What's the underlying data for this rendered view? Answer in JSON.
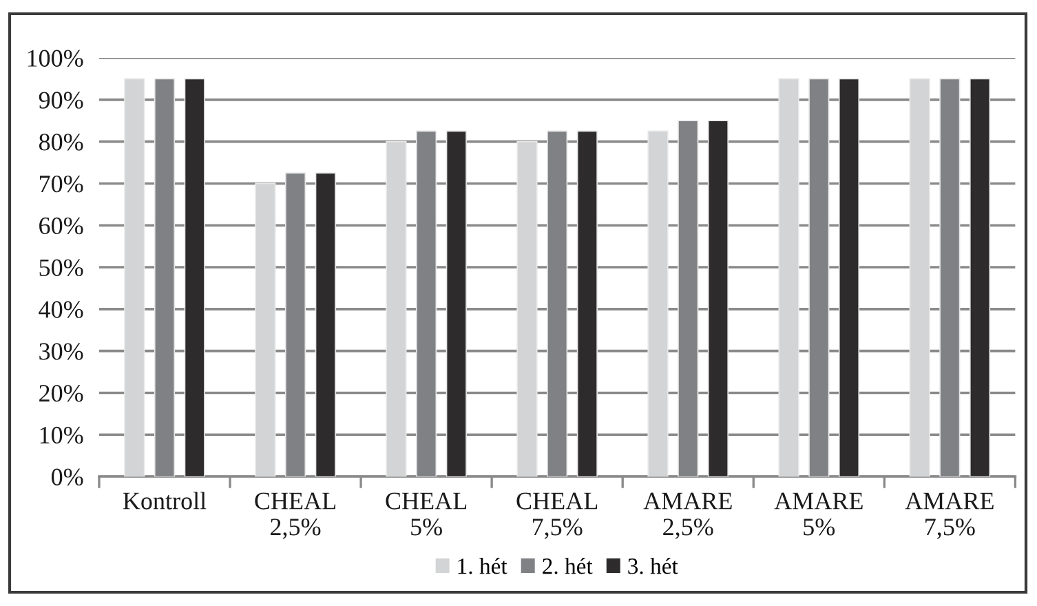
{
  "chart_data": {
    "type": "bar",
    "categories": [
      "Kontroll",
      "CHEAL\n2,5%",
      "CHEAL\n5%",
      "CHEAL\n7,5%",
      "AMARE\n2,5%",
      "AMARE\n5%",
      "AMARE\n7,5%"
    ],
    "series": [
      {
        "name": "1. hét",
        "color": "#d3d4d5",
        "values": [
          95,
          70,
          80,
          80,
          82.5,
          95,
          95
        ]
      },
      {
        "name": "2. hét",
        "color": "#808184",
        "values": [
          95,
          72.5,
          82.5,
          82.5,
          85,
          95,
          95
        ]
      },
      {
        "name": "3. hét",
        "color": "#2d2b2c",
        "values": [
          95,
          72.5,
          82.5,
          82.5,
          85,
          95,
          95
        ]
      }
    ],
    "ylim": [
      0,
      100
    ],
    "yticks": [
      {
        "value": 0,
        "label": "0%"
      },
      {
        "value": 10,
        "label": "10%"
      },
      {
        "value": 20,
        "label": "20%"
      },
      {
        "value": 30,
        "label": "30%"
      },
      {
        "value": 40,
        "label": "40%"
      },
      {
        "value": 50,
        "label": "50%"
      },
      {
        "value": 60,
        "label": "60%"
      },
      {
        "value": 70,
        "label": "70%"
      },
      {
        "value": 80,
        "label": "80%"
      },
      {
        "value": 90,
        "label": "90%"
      },
      {
        "value": 100,
        "label": "100%"
      }
    ],
    "grid": "y",
    "legend": "bottom"
  }
}
